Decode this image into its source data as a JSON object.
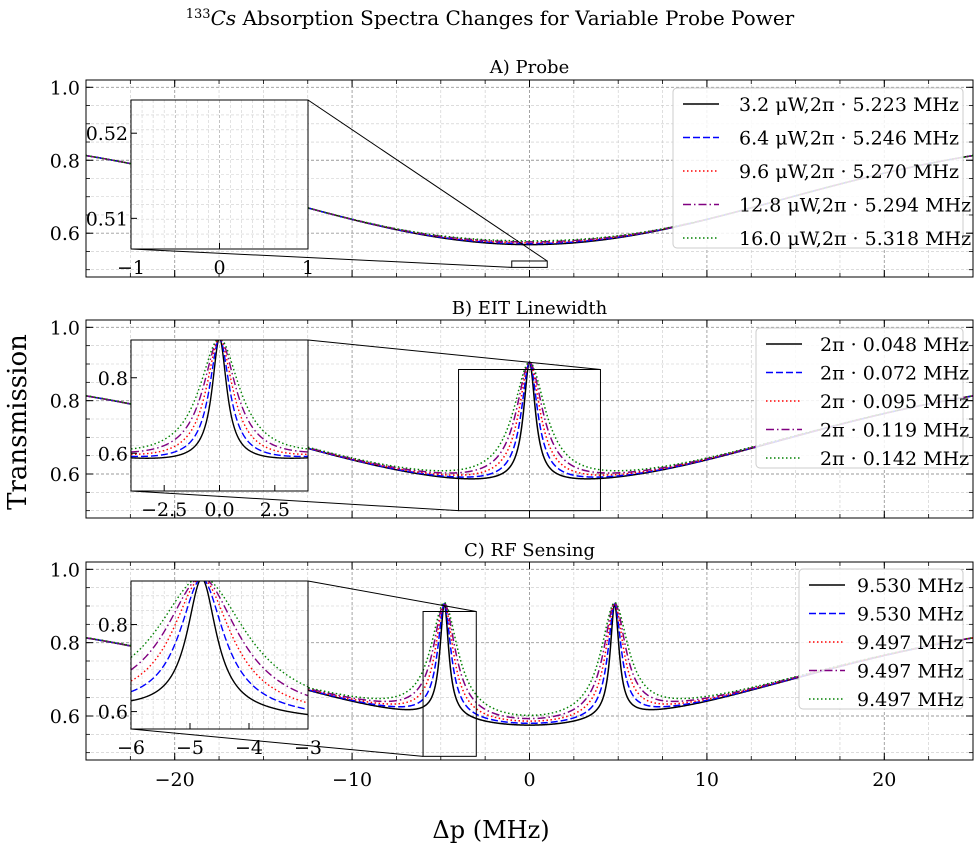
{
  "figure": {
    "suptitle_mass": "133",
    "suptitle_elem": "Cs",
    "suptitle_rest": " Absorption Spectra Changes for Variable Probe Power",
    "ylabel": "Transmission",
    "xlabel": "Δp (MHz)"
  },
  "chart_data": [
    {
      "type": "line",
      "title": "A) Probe",
      "xlim": [
        -25,
        25
      ],
      "ylim": [
        0.48,
        1.02
      ],
      "xticks": [
        -20,
        -10,
        0,
        10,
        20
      ],
      "yticks": [
        0.6,
        0.8,
        1.0
      ],
      "grid": true,
      "legend_position": "top-right",
      "model": {
        "kind": "probe"
      },
      "series": [
        {
          "name": "3.2 μW,2π · 5.223 MHz",
          "color": "#000000",
          "style": "solid",
          "params": {
            "floor": 0.5085
          }
        },
        {
          "name": "6.4 μW,2π · 5.246 MHz",
          "color": "#0000ff",
          "style": "dashed",
          "params": {
            "floor": 0.5112
          }
        },
        {
          "name": "9.6 μW,2π · 5.270 MHz",
          "color": "#ff0000",
          "style": "dotted",
          "params": {
            "floor": 0.5137
          }
        },
        {
          "name": "12.8 μW,2π · 5.294 MHz",
          "color": "#800080",
          "style": "dashdot",
          "params": {
            "floor": 0.5161
          }
        },
        {
          "name": "16.0 μW,2π · 5.318 MHz",
          "color": "#008000",
          "style": "dotted",
          "params": {
            "floor": 0.5187
          }
        }
      ],
      "inset": {
        "xlim": [
          -1,
          1
        ],
        "ylim": [
          0.5064,
          0.5239
        ],
        "xticks": [
          -1,
          0,
          1
        ],
        "yticks": [
          0.51,
          0.52
        ]
      }
    },
    {
      "type": "line",
      "title": "B) EIT Linewidth",
      "xlim": [
        -25,
        25
      ],
      "ylim": [
        0.48,
        1.02
      ],
      "xticks": [
        -20,
        -10,
        0,
        10,
        20
      ],
      "yticks": [
        0.6,
        0.8,
        1.0
      ],
      "grid": true,
      "legend_position": "top-right",
      "model": {
        "kind": "eit",
        "peaks": [
          0
        ],
        "peak_height": 0.885
      },
      "series": [
        {
          "name": "2π · 0.048 MHz",
          "color": "#000000",
          "style": "solid",
          "params": {
            "w": 0.4
          }
        },
        {
          "name": "2π · 0.072 MHz",
          "color": "#0000ff",
          "style": "dashed",
          "params": {
            "w": 0.55
          }
        },
        {
          "name": "2π · 0.095 MHz",
          "color": "#ff0000",
          "style": "dotted",
          "params": {
            "w": 0.72
          }
        },
        {
          "name": "2π · 0.119 MHz",
          "color": "#800080",
          "style": "dashdot",
          "params": {
            "w": 0.9
          }
        },
        {
          "name": "2π · 0.142 MHz",
          "color": "#008000",
          "style": "dotted",
          "params": {
            "w": 1.1
          }
        }
      ],
      "inset": {
        "xlim": [
          -4,
          4
        ],
        "ylim": [
          0.5,
          0.9
        ],
        "xticks": [
          -2.5,
          0.0,
          2.5
        ],
        "yticks": [
          0.6,
          0.8
        ]
      }
    },
    {
      "type": "line",
      "title": "C) RF Sensing",
      "xlim": [
        -25,
        25
      ],
      "ylim": [
        0.48,
        1.02
      ],
      "xticks": [
        -20,
        -10,
        0,
        10,
        20
      ],
      "yticks": [
        0.6,
        0.8,
        1.0
      ],
      "grid": true,
      "legend_position": "top-right",
      "model": {
        "kind": "eit",
        "peaks": [
          -4.8,
          4.8
        ],
        "peak_height": 0.885
      },
      "series": [
        {
          "name": "9.530 MHz",
          "color": "#000000",
          "style": "solid",
          "params": {
            "w": 0.3
          }
        },
        {
          "name": "9.530 MHz",
          "color": "#0000ff",
          "style": "dashed",
          "params": {
            "w": 0.45
          }
        },
        {
          "name": "9.497 MHz",
          "color": "#ff0000",
          "style": "dotted",
          "params": {
            "w": 0.6
          }
        },
        {
          "name": "9.497 MHz",
          "color": "#800080",
          "style": "dashdot",
          "params": {
            "w": 0.75
          }
        },
        {
          "name": "9.497 MHz",
          "color": "#008000",
          "style": "dotted",
          "params": {
            "w": 0.92
          }
        }
      ],
      "inset": {
        "xlim": [
          -6,
          -3
        ],
        "ylim": [
          0.56,
          0.9
        ],
        "xticks": [
          -6,
          -5,
          -4,
          -3
        ],
        "yticks": [
          0.6,
          0.8
        ]
      }
    }
  ]
}
